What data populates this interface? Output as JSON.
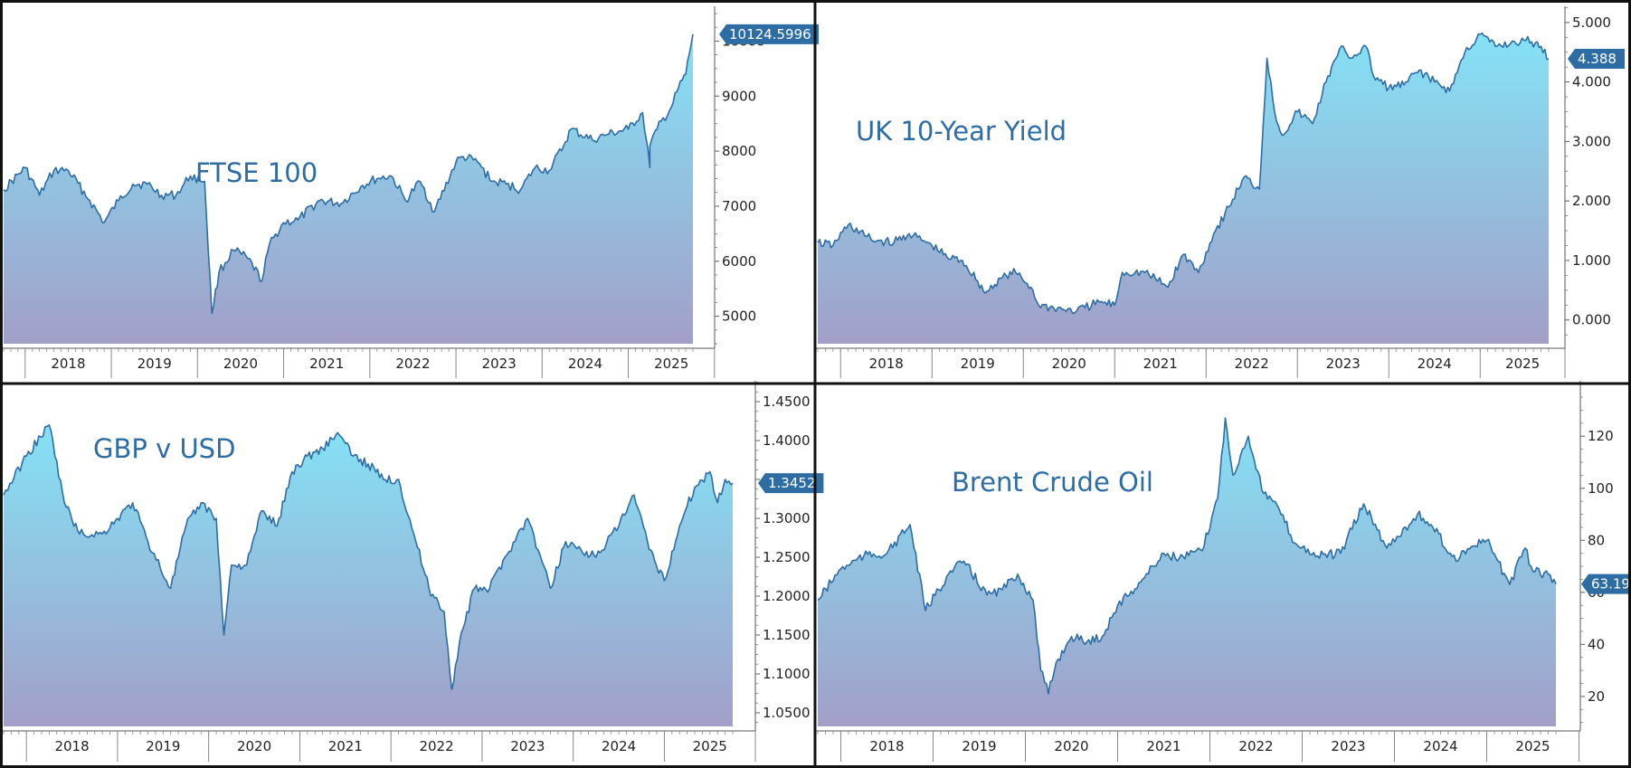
{
  "colors": {
    "line": "#2e6da4",
    "fill_top": "#84e2f6",
    "fill_bottom": "#a29fc8",
    "badge": "#2e6da4",
    "frame": "#111111",
    "text": "#222222"
  },
  "chart_data": [
    {
      "id": "ftse",
      "type": "area",
      "title": "FTSE 100",
      "x_tick_labels": [
        "2018",
        "2019",
        "2020",
        "2021",
        "2022",
        "2023",
        "2024",
        "2025"
      ],
      "y_tick_labels": [
        "5000",
        "6000",
        "7000",
        "8000",
        "9000",
        "10000"
      ],
      "ylim": [
        4500,
        10500
      ],
      "last_value_label": "10124.5996",
      "grid": false,
      "series": [
        {
          "x": [
            "2017-10",
            "2018-01",
            "2018-03",
            "2018-05",
            "2018-07",
            "2018-10",
            "2018-12",
            "2019-02",
            "2019-04",
            "2019-06",
            "2019-08",
            "2019-10",
            "2019-12",
            "2020-02",
            "2020-03",
            "2020-04",
            "2020-06",
            "2020-08",
            "2020-10",
            "2020-11",
            "2021-01",
            "2021-03",
            "2021-06",
            "2021-09",
            "2021-12",
            "2022-02",
            "2022-04",
            "2022-06",
            "2022-08",
            "2022-10",
            "2023-01",
            "2023-02",
            "2023-04",
            "2023-06",
            "2023-08",
            "2023-10",
            "2023-12",
            "2024-02",
            "2024-04",
            "2024-05",
            "2024-08",
            "2024-10",
            "2025-01",
            "2025-03",
            "2025-04",
            "2025-04",
            "2025-05",
            "2025-07",
            "2025-08",
            "2025-09",
            "2025-10"
          ],
          "values": [
            7300,
            7700,
            7200,
            7650,
            7650,
            7100,
            6700,
            7100,
            7400,
            7400,
            7200,
            7200,
            7550,
            7450,
            5050,
            5800,
            6200,
            6050,
            5650,
            6300,
            6700,
            6750,
            7100,
            7050,
            7380,
            7500,
            7550,
            7100,
            7450,
            6900,
            7800,
            7900,
            7800,
            7450,
            7400,
            7300,
            7700,
            7650,
            8100,
            8400,
            8200,
            8300,
            8400,
            8700,
            7700,
            8100,
            8400,
            8800,
            9150,
            9400,
            10124.6
          ]
        }
      ]
    },
    {
      "id": "gilt10y",
      "type": "area",
      "title": "UK 10-Year Yield",
      "x_tick_labels": [
        "2018",
        "2019",
        "2020",
        "2021",
        "2022",
        "2023",
        "2024",
        "2025"
      ],
      "y_tick_labels": [
        "0.000",
        "1.000",
        "2.000",
        "3.000",
        "4.000",
        "5.000"
      ],
      "ylim": [
        -0.4,
        5.15
      ],
      "last_value_label": "4.388",
      "grid": false,
      "series": [
        {
          "x": [
            "2017-10",
            "2017-12",
            "2018-02",
            "2018-05",
            "2018-08",
            "2018-10",
            "2019-01",
            "2019-03",
            "2019-05",
            "2019-07",
            "2019-08",
            "2019-10",
            "2019-12",
            "2020-02",
            "2020-03",
            "2020-05",
            "2020-08",
            "2020-11",
            "2021-01",
            "2021-02",
            "2021-05",
            "2021-08",
            "2021-10",
            "2021-12",
            "2022-02",
            "2022-04",
            "2022-06",
            "2022-08",
            "2022-09",
            "2022-10",
            "2022-11",
            "2023-01",
            "2023-03",
            "2023-05",
            "2023-07",
            "2023-08",
            "2023-10",
            "2023-11",
            "2024-01",
            "2024-03",
            "2024-05",
            "2024-07",
            "2024-09",
            "2024-11",
            "2025-01",
            "2025-03",
            "2025-05",
            "2025-07",
            "2025-09",
            "2025-10"
          ],
          "values": [
            1.3,
            1.25,
            1.6,
            1.35,
            1.3,
            1.45,
            1.25,
            1.05,
            1.0,
            0.65,
            0.45,
            0.7,
            0.8,
            0.55,
            0.25,
            0.2,
            0.15,
            0.3,
            0.25,
            0.8,
            0.8,
            0.55,
            1.1,
            0.8,
            1.45,
            1.9,
            2.4,
            2.2,
            4.4,
            3.5,
            3.1,
            3.5,
            3.3,
            4.1,
            4.6,
            4.4,
            4.6,
            4.1,
            3.9,
            3.95,
            4.2,
            4.0,
            3.85,
            4.5,
            4.8,
            4.6,
            4.65,
            4.7,
            4.6,
            4.39
          ]
        }
      ]
    },
    {
      "id": "gbpusd",
      "type": "area",
      "title": "GBP v USD",
      "x_tick_labels": [
        "2018",
        "2019",
        "2020",
        "2021",
        "2022",
        "2023",
        "2024",
        "2025"
      ],
      "y_tick_labels": [
        "1.0500",
        "1.1000",
        "1.1500",
        "1.2000",
        "1.2500",
        "1.3000",
        "1.3500",
        "1.4000",
        "1.4500"
      ],
      "ylim": [
        1.0325,
        1.4675
      ],
      "last_value_label": "1.3452",
      "grid": false,
      "series": [
        {
          "x": [
            "2017-10",
            "2018-01",
            "2018-04",
            "2018-06",
            "2018-08",
            "2018-11",
            "2019-01",
            "2019-03",
            "2019-05",
            "2019-08",
            "2019-10",
            "2019-12",
            "2020-02",
            "2020-03",
            "2020-04",
            "2020-06",
            "2020-08",
            "2020-10",
            "2020-12",
            "2021-02",
            "2021-04",
            "2021-06",
            "2021-08",
            "2021-10",
            "2021-12",
            "2022-02",
            "2022-04",
            "2022-06",
            "2022-08",
            "2022-09",
            "2022-10",
            "2022-12",
            "2023-02",
            "2023-04",
            "2023-07",
            "2023-10",
            "2023-12",
            "2024-02",
            "2024-04",
            "2024-07",
            "2024-09",
            "2024-11",
            "2025-01",
            "2025-03",
            "2025-05",
            "2025-07",
            "2025-08",
            "2025-09",
            "2025-10"
          ],
          "values": [
            1.33,
            1.38,
            1.42,
            1.32,
            1.28,
            1.28,
            1.3,
            1.32,
            1.27,
            1.21,
            1.29,
            1.32,
            1.3,
            1.15,
            1.24,
            1.24,
            1.31,
            1.29,
            1.36,
            1.38,
            1.39,
            1.41,
            1.38,
            1.37,
            1.35,
            1.35,
            1.28,
            1.21,
            1.18,
            1.08,
            1.14,
            1.21,
            1.21,
            1.25,
            1.3,
            1.21,
            1.27,
            1.26,
            1.25,
            1.29,
            1.33,
            1.26,
            1.22,
            1.29,
            1.34,
            1.36,
            1.32,
            1.35,
            1.3452
          ]
        }
      ]
    },
    {
      "id": "brent",
      "type": "area",
      "title": "Brent Crude Oil",
      "x_tick_labels": [
        "2018",
        "2019",
        "2020",
        "2021",
        "2022",
        "2023",
        "2024",
        "2025"
      ],
      "y_tick_labels": [
        "20",
        "40",
        "60",
        "80",
        "100",
        "120"
      ],
      "ylim": [
        8.5,
        138.5
      ],
      "last_value_label": "63.19",
      "grid": false,
      "series": [
        {
          "x": [
            "2017-10",
            "2018-01",
            "2018-04",
            "2018-07",
            "2018-10",
            "2018-12",
            "2019-03",
            "2019-05",
            "2019-08",
            "2019-10",
            "2019-12",
            "2020-02",
            "2020-03",
            "2020-04",
            "2020-05",
            "2020-07",
            "2020-09",
            "2020-11",
            "2021-01",
            "2021-04",
            "2021-07",
            "2021-09",
            "2021-12",
            "2022-02",
            "2022-03",
            "2022-04",
            "2022-06",
            "2022-08",
            "2022-10",
            "2022-12",
            "2023-03",
            "2023-06",
            "2023-09",
            "2023-12",
            "2024-04",
            "2024-06",
            "2024-09",
            "2024-10",
            "2025-01",
            "2025-04",
            "2025-06",
            "2025-07",
            "2025-09",
            "2025-10"
          ],
          "values": [
            57,
            69,
            74,
            75,
            86,
            53,
            67,
            72,
            59,
            61,
            67,
            57,
            30,
            21,
            33,
            43,
            41,
            43,
            55,
            64,
            75,
            73,
            76,
            96,
            127,
            105,
            120,
            98,
            92,
            79,
            74,
            75,
            94,
            77,
            90,
            85,
            72,
            76,
            80,
            63,
            77,
            68,
            67,
            63.19
          ]
        }
      ]
    }
  ]
}
